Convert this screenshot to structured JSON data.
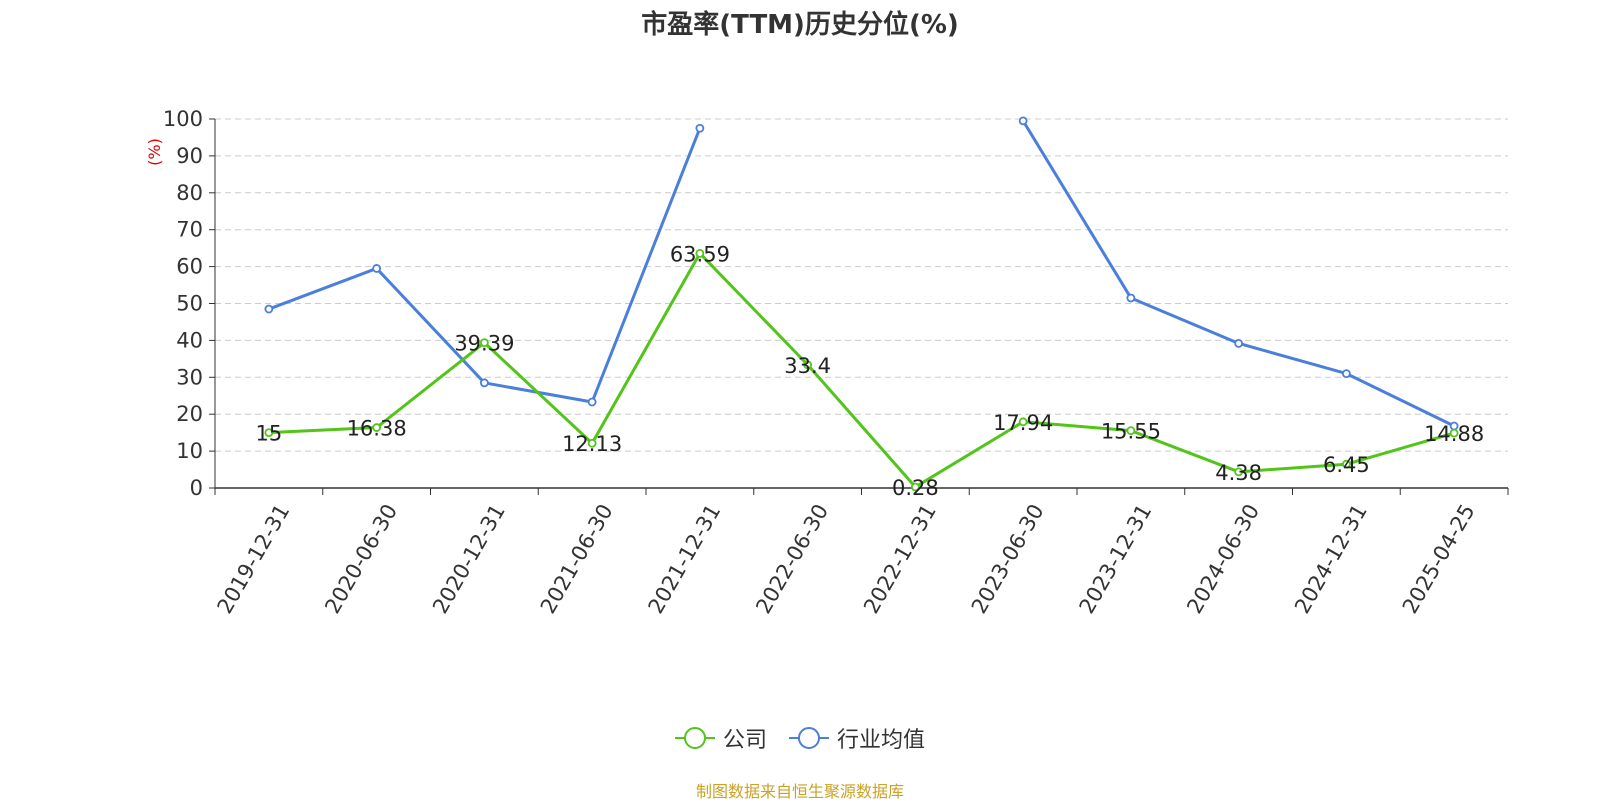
{
  "chart_data": {
    "type": "line",
    "title": "市盈率(TTM)历史分位(%)",
    "ylabel": "(%)",
    "xlabel": "",
    "ylim": [
      0,
      100
    ],
    "yticks": [
      0,
      10,
      20,
      30,
      40,
      50,
      60,
      70,
      80,
      90,
      100
    ],
    "grid": true,
    "legend_position": "bottom",
    "categories": [
      "2019-12-31",
      "2020-06-30",
      "2020-12-31",
      "2021-06-30",
      "2021-12-31",
      "2022-06-30",
      "2022-12-31",
      "2023-06-30",
      "2023-12-31",
      "2024-06-30",
      "2024-12-31",
      "2025-04-25"
    ],
    "series": [
      {
        "name": "公司",
        "color": "#52c41a",
        "values": [
          15,
          16.38,
          39.39,
          12.13,
          63.59,
          33.4,
          0.28,
          17.94,
          15.55,
          4.38,
          6.45,
          14.88
        ],
        "labels": [
          "15",
          "16.38",
          "39.39",
          "12.13",
          "63.59",
          "33.4",
          "0.28",
          "17.94",
          "15.55",
          "4.38",
          "6.45",
          "14.88"
        ]
      },
      {
        "name": "行业均值",
        "color": "#4a7fdb",
        "values": [
          48.5,
          59.5,
          28.5,
          23.3,
          97.5,
          null,
          null,
          99.5,
          51.5,
          39.2,
          31,
          16.8
        ]
      }
    ],
    "source": "制图数据来自恒生聚源数据库"
  }
}
